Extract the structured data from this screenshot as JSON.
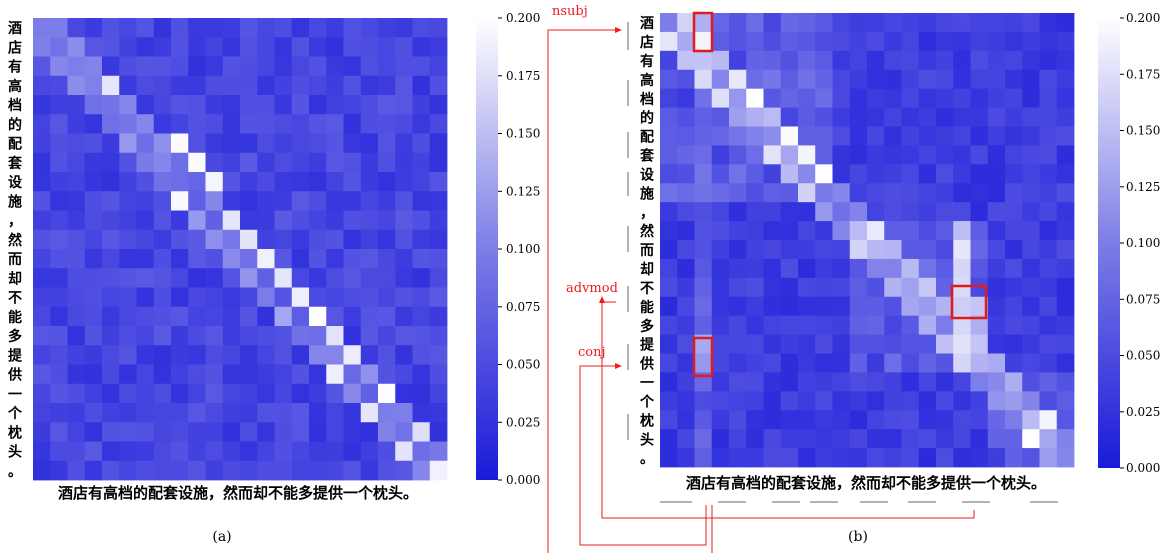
{
  "figure": {
    "panel_labels": [
      "(a)",
      "(b)"
    ],
    "colorbar_ticks": [
      "0.000",
      "0.025",
      "0.050",
      "0.075",
      "0.100",
      "0.125",
      "0.150",
      "0.175",
      "0.200"
    ],
    "colors": {
      "low": "#1a1ad9",
      "high": "#ffffff",
      "highlight": "#e01b1b"
    }
  },
  "chart_data": [
    {
      "type": "heatmap",
      "panel": "(a)",
      "tokens": [
        "酒",
        "店",
        "有",
        "高",
        "档",
        "的",
        "配",
        "套",
        "设",
        "施",
        "，",
        "然",
        "而",
        "却",
        "不",
        "能",
        "多",
        "提",
        "供",
        "一",
        "个",
        "枕",
        "头",
        "。"
      ],
      "xlabel_text": "酒店有高档的配套设施，然而却不能多提供一个枕头。",
      "vmin": 0.0,
      "vmax": 0.2,
      "colorbar_ticks": [
        0.0,
        0.025,
        0.05,
        0.075,
        0.1,
        0.125,
        0.15,
        0.175,
        0.2
      ],
      "pattern": "diagonal-dominant attention",
      "bright_cells": [
        [
          3,
          4
        ],
        [
          6,
          8
        ],
        [
          7,
          9
        ],
        [
          8,
          10
        ],
        [
          9,
          8
        ],
        [
          10,
          11
        ],
        [
          11,
          12
        ],
        [
          12,
          13
        ],
        [
          13,
          14
        ],
        [
          14,
          15
        ],
        [
          15,
          16
        ],
        [
          16,
          17
        ],
        [
          17,
          18
        ],
        [
          18,
          17
        ],
        [
          19,
          20
        ],
        [
          20,
          19
        ],
        [
          21,
          22
        ],
        [
          22,
          21
        ],
        [
          23,
          23
        ]
      ]
    },
    {
      "type": "heatmap",
      "panel": "(b)",
      "tokens": [
        "酒",
        "店",
        "有",
        "高",
        "档",
        "的",
        "配",
        "套",
        "设",
        "施",
        "，",
        "然",
        "而",
        "却",
        "不",
        "能",
        "多",
        "提",
        "供",
        "一",
        "个",
        "枕",
        "头",
        "。"
      ],
      "xlabel_text": "酒店有高档的配套设施，然而却不能多提供一个枕头。",
      "vmin": 0.0,
      "vmax": 0.2,
      "colorbar_ticks": [
        0.0,
        0.025,
        0.05,
        0.075,
        0.1,
        0.125,
        0.15,
        0.175,
        0.2
      ],
      "pattern": "block-structured attention by word",
      "annotations": [
        {
          "label": "nsubj",
          "rows": [
            0,
            1
          ],
          "col": 2
        },
        {
          "label": "advmod",
          "rows": [
            15,
            16
          ],
          "cols": [
            17,
            18
          ]
        },
        {
          "label": "conj",
          "rows": [
            17,
            18
          ],
          "col": 2
        }
      ]
    }
  ]
}
